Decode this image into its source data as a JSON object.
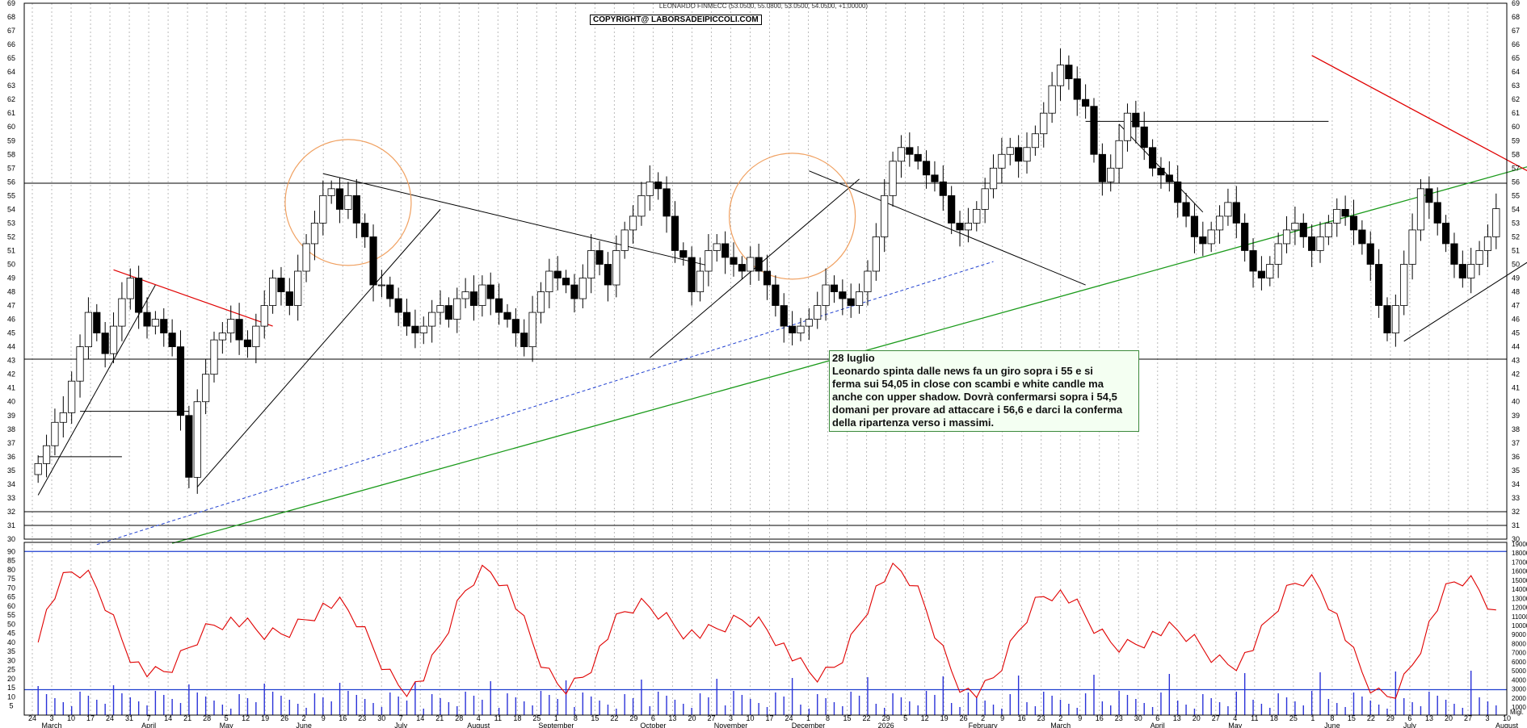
{
  "header": {
    "title": "LEONARDO FINMECC (53.0500, 55.0800, 53.0500, 54.0500, +1.00000)",
    "copyright": "COPYRIGHT@ LABORSADEIPICCOLI.COM"
  },
  "note": {
    "title": "28 luglio",
    "lines": [
      "Leonardo spinta dalle news fa un giro sopra i 55 e  si",
      "ferma sui 54,05 in close con scambi e white candle ma",
      "anche con upper shadow. Dovrà confermarsi sopra i 54,5",
      "domani per provare ad attaccare i 56,6 e darci la conferma",
      "della ripartenza verso i massimi."
    ]
  },
  "chart_data": [
    {
      "type": "candlestick",
      "ylim": [
        30,
        69
      ],
      "y_ticks": [
        30,
        31,
        32,
        33,
        34,
        35,
        36,
        37,
        38,
        39,
        40,
        41,
        42,
        43,
        44,
        45,
        46,
        47,
        48,
        49,
        50,
        51,
        52,
        53,
        54,
        55,
        56,
        57,
        58,
        59,
        60,
        61,
        62,
        63,
        64,
        65,
        66,
        67,
        68,
        69
      ],
      "x_ticks": [
        "24",
        "3",
        "10",
        "17",
        "24",
        "31",
        "7",
        "14",
        "21",
        "28",
        "5",
        "12",
        "19",
        "26",
        "2",
        "9",
        "16",
        "23",
        "30",
        "7",
        "14",
        "21",
        "28",
        "4",
        "11",
        "18",
        "25",
        "1",
        "8",
        "15",
        "22",
        "29",
        "6",
        "13",
        "20",
        "27",
        "3",
        "10",
        "17",
        "24",
        "1",
        "8",
        "15",
        "22",
        "29",
        "5",
        "12",
        "19",
        "26",
        "2",
        "9",
        "16",
        "23",
        "2",
        "9",
        "16",
        "23",
        "30",
        "6",
        "13",
        "20",
        "27",
        "4",
        "11",
        "18",
        "25",
        "1",
        "8",
        "15",
        "22",
        "29",
        "6",
        "13",
        "20",
        "27",
        "3",
        "10"
      ],
      "months": [
        "March",
        "April",
        "May",
        "June",
        "July",
        "August",
        "September",
        "October",
        "November",
        "December",
        "2026",
        "February",
        "March",
        "April",
        "May",
        "June",
        "July",
        "August"
      ],
      "horizontal_levels": [
        55.9,
        43.1,
        32.0,
        31.0
      ],
      "close_series": [
        35.5,
        36.8,
        38.5,
        39.2,
        41.5,
        44.0,
        46.5,
        45.0,
        43.5,
        45.5,
        47.5,
        49.0,
        46.5,
        45.5,
        46.0,
        45.0,
        44.0,
        39.0,
        34.5,
        40.0,
        42.0,
        44.5,
        45.0,
        46.0,
        44.5,
        44.0,
        45.5,
        47.0,
        49.0,
        48.0,
        47.0,
        49.5,
        51.5,
        53.0,
        55.0,
        55.5,
        54.0,
        55.0,
        53.0,
        52.0,
        48.5,
        48.5,
        47.5,
        46.5,
        45.5,
        45.0,
        45.5,
        46.5,
        47.0,
        46.0,
        47.5,
        48.0,
        47.0,
        48.5,
        47.5,
        46.5,
        46.0,
        45.0,
        44.0,
        46.5,
        48.0,
        49.5,
        49.0,
        48.5,
        47.5,
        49.0,
        51.0,
        50.0,
        48.5,
        51.0,
        52.5,
        53.5,
        55.0,
        56.0,
        55.5,
        53.5,
        51.0,
        50.5,
        48.0,
        49.5,
        51.0,
        51.5,
        50.5,
        50.0,
        49.5,
        50.5,
        49.5,
        48.5,
        47.0,
        45.5,
        45.0,
        45.5,
        46.0,
        47.0,
        48.5,
        48.0,
        47.5,
        47.0,
        48.0,
        49.5,
        52.0,
        55.0,
        57.5,
        58.5,
        58.0,
        57.5,
        56.5,
        56.0,
        55.0,
        53.0,
        52.5,
        53.0,
        54.0,
        55.5,
        57.0,
        58.0,
        58.5,
        57.5,
        58.5,
        59.5,
        61.0,
        63.0,
        64.5,
        63.5,
        62.0,
        61.5,
        58.0,
        56.0,
        57.0,
        59.0,
        61.0,
        60.0,
        58.5,
        57.0,
        56.5,
        56.0,
        54.5,
        53.5,
        52.0,
        51.5,
        52.5,
        53.5,
        54.5,
        53.0,
        51.0,
        49.5,
        49.0,
        50.0,
        51.5,
        52.5,
        53.0,
        52.0,
        51.0,
        52.0,
        53.0,
        54.0,
        53.5,
        52.5,
        51.5,
        50.0,
        47.0,
        45.0,
        47.0,
        50.0,
        52.5,
        55.5,
        54.5,
        53.0,
        51.5,
        50.0,
        49.0,
        50.0,
        51.0,
        52.0,
        54.05
      ]
    },
    {
      "type": "line+bar",
      "ylim_left": [
        0,
        95
      ],
      "y_ticks_left": [
        5,
        10,
        15,
        20,
        25,
        30,
        35,
        40,
        45,
        50,
        55,
        60,
        65,
        70,
        75,
        80,
        85,
        90
      ],
      "y_ticks_right": [
        1000,
        2000,
        3000,
        4000,
        5000,
        6000,
        7000,
        8000,
        9000,
        10000,
        11000,
        12000,
        13000,
        14000,
        15000,
        16000,
        17000,
        18000,
        19000
      ],
      "right_axis_label": "Migl.",
      "reference_levels": [
        90,
        14
      ]
    }
  ],
  "colors": {
    "up": "#ffffff",
    "down": "#000000",
    "resistance": "#e00000",
    "support": "#1a9a1a",
    "dashed": "#1f3fd0",
    "volume": "#2a32d8",
    "oscillator": "#e00000",
    "circle": "#f0a060"
  }
}
